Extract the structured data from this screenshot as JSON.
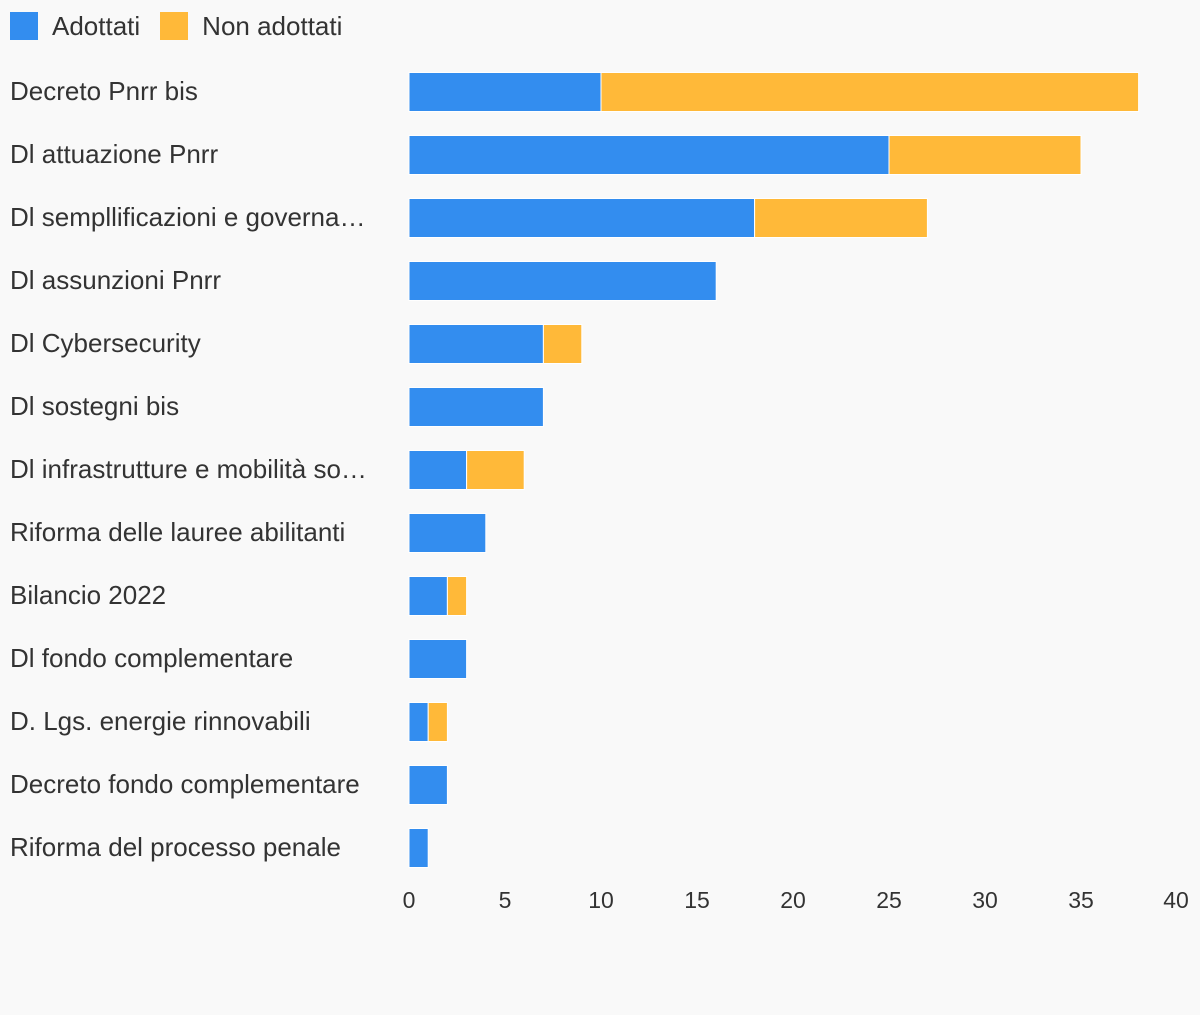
{
  "chart_data": {
    "type": "bar",
    "orientation": "horizontal",
    "stacked": true,
    "categories": [
      "Decreto Pnrr bis",
      "Dl attuazione Pnrr",
      "Dl sempllificazioni e governa…",
      "Dl assunzioni Pnrr",
      "Dl Cybersecurity",
      "Dl sostegni bis",
      "Dl infrastrutture e mobilità so…",
      "Riforma delle lauree abilitanti",
      "Bilancio 2022",
      "Dl fondo complementare",
      "D. Lgs. energie rinnovabili",
      "Decreto fondo complementare",
      "Riforma del processo penale"
    ],
    "series": [
      {
        "name": "Adottati",
        "color": "#338def",
        "values": [
          10,
          25,
          18,
          16,
          7,
          7,
          3,
          4,
          2,
          3,
          1,
          2,
          1
        ]
      },
      {
        "name": "Non adottati",
        "color": "#ffb939",
        "values": [
          28,
          10,
          9,
          0,
          2,
          0,
          3,
          0,
          1,
          0,
          1,
          0,
          0
        ]
      }
    ],
    "xlim": [
      0,
      40
    ],
    "xticks": [
      "0",
      "5",
      "10",
      "15",
      "20",
      "25",
      "30",
      "35",
      "40"
    ],
    "legend_position": "top-left",
    "grid": false
  }
}
